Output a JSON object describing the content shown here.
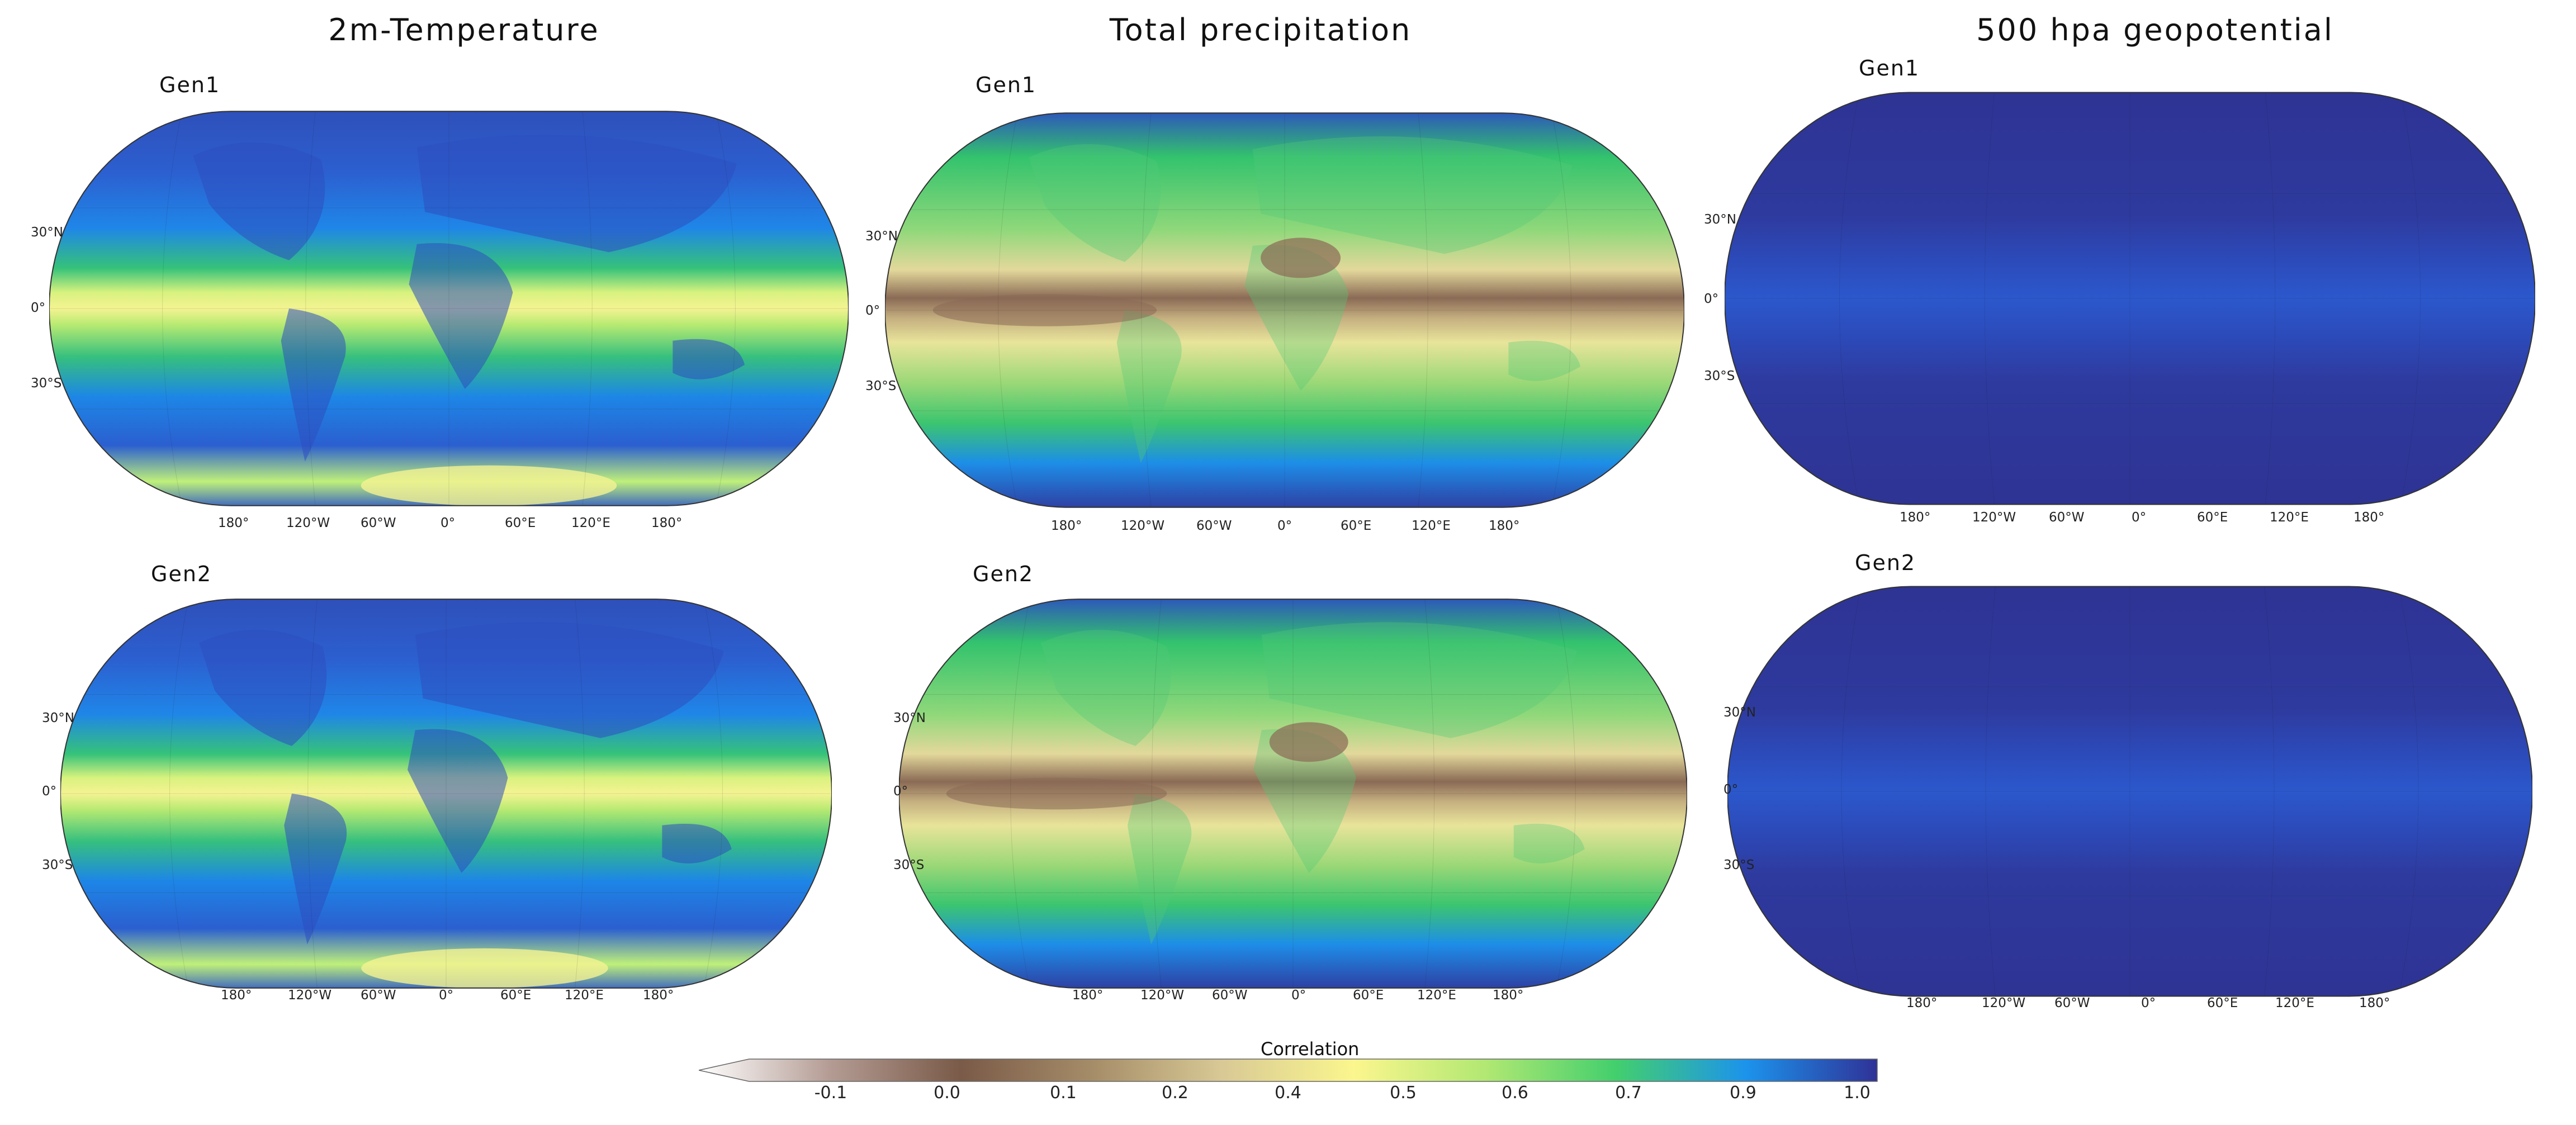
{
  "columns": [
    {
      "title": "2m-Temperature",
      "variant": "temp"
    },
    {
      "title": "Total precipitation",
      "variant": "precip"
    },
    {
      "title": "500 hpa geopotential",
      "variant": "geo"
    }
  ],
  "rows": [
    {
      "label": "Gen1"
    },
    {
      "label": "Gen2"
    }
  ],
  "lat_labels": [
    "30°N",
    "0°",
    "30°S"
  ],
  "lon_labels": [
    "180°",
    "120°W",
    "60°W",
    "0°",
    "60°E",
    "120°E",
    "180°"
  ],
  "colorbar": {
    "title": "Correlation",
    "ticks": [
      "-0.1",
      "0.0",
      "0.1",
      "0.2",
      "0.4",
      "0.5",
      "0.6",
      "0.7",
      "0.9",
      "1.0"
    ],
    "colors": [
      "#ffffff",
      "#b49c94",
      "#7a5a48",
      "#a58c68",
      "#d8c995",
      "#fbf68e",
      "#b2e873",
      "#43cf6d",
      "#1c93ec",
      "#2f3297"
    ],
    "extend": "min"
  }
}
